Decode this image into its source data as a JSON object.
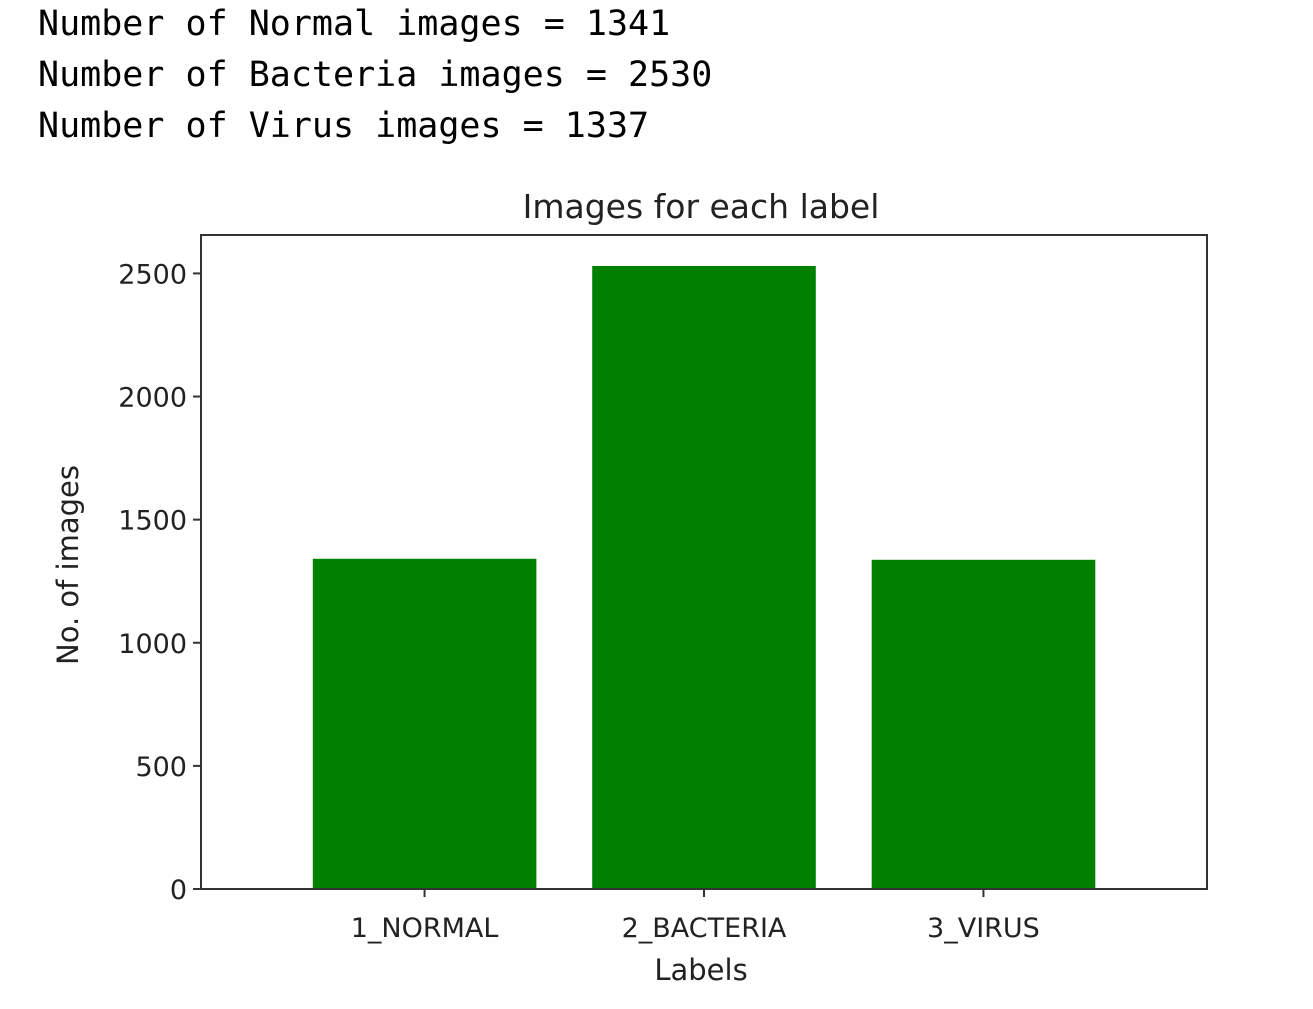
{
  "output": {
    "lines": [
      "Number of Normal images = 1341",
      "Number of Bacteria images = 2530",
      "Number of Virus images = 1337"
    ]
  },
  "colors": {
    "bar": "#008000",
    "axis": "#333333",
    "text": "#222222"
  },
  "chart_data": {
    "type": "bar",
    "title": "Images for each label",
    "xlabel": "Labels",
    "ylabel": "No. of images",
    "categories": [
      "1_NORMAL",
      "2_BACTERIA",
      "3_VIRUS"
    ],
    "values": [
      1341,
      2530,
      1337
    ],
    "ylim": [
      0,
      2656
    ],
    "yticks": [
      0,
      500,
      1000,
      1500,
      2000,
      2500
    ],
    "grid": false,
    "bar_color": "#008000"
  }
}
